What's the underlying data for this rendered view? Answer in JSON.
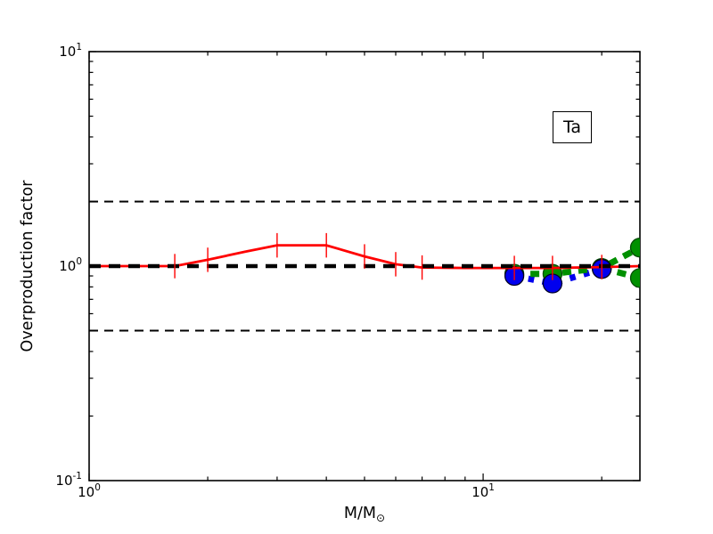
{
  "axes": {
    "ylabel": "Overproduction factor",
    "xlabel": {
      "main": "M/M",
      "sub": "⊙"
    }
  },
  "annotation": {
    "label": "Ta"
  },
  "chart_data": {
    "type": "line",
    "title": "",
    "xlabel": "M/M_sun",
    "ylabel": "Overproduction factor",
    "annotation": "Ta",
    "x_scale": "log",
    "y_scale": "log",
    "xlim": [
      1,
      25
    ],
    "ylim": [
      0.1,
      10
    ],
    "grid": false,
    "x_major_ticks": [
      {
        "value": 1,
        "label": "10^0",
        "exp": "0"
      },
      {
        "value": 10,
        "label": "10^1",
        "exp": "1"
      }
    ],
    "x_minor_ticks": [
      2,
      3,
      4,
      5,
      6,
      7,
      8,
      9,
      20
    ],
    "y_major_ticks": [
      {
        "value": 0.1,
        "label": "10^-1",
        "exp": "-1"
      },
      {
        "value": 1,
        "label": "10^0",
        "exp": "0"
      },
      {
        "value": 10,
        "label": "10^1",
        "exp": "1"
      }
    ],
    "y_minor_ticks": [
      0.2,
      0.3,
      0.4,
      0.5,
      0.6,
      0.7,
      0.8,
      0.9,
      2,
      3,
      4,
      5,
      6,
      7,
      8,
      9
    ],
    "reference_lines": [
      {
        "y": 2.0,
        "color": "#000000",
        "style": "dashed-thin"
      },
      {
        "y": 1.0,
        "color": "#000000",
        "style": "dashed-thick"
      },
      {
        "y": 0.5,
        "color": "#000000",
        "style": "dashed-thin"
      }
    ],
    "series": [
      {
        "name": "red-solid",
        "color": "#ff0000",
        "style": "solid",
        "linewidth": 2.8,
        "marker": "none",
        "points": [
          [
            1,
            1.0
          ],
          [
            1.65,
            1.0
          ],
          [
            2,
            1.07
          ],
          [
            2.5,
            1.17
          ],
          [
            3,
            1.25
          ],
          [
            4,
            1.25
          ],
          [
            5,
            1.11
          ],
          [
            6,
            1.02
          ],
          [
            7,
            0.985
          ],
          [
            9,
            0.98
          ],
          [
            12,
            0.98
          ],
          [
            15,
            0.98
          ],
          [
            20,
            0.99
          ],
          [
            25,
            1.0
          ]
        ],
        "errorbar_x": [
          1.65,
          2,
          3,
          4,
          5,
          6,
          7,
          12,
          15,
          20
        ],
        "errorbar_factor": 1.14
      },
      {
        "name": "blue-dotted",
        "color": "#0000ee",
        "style": "dotted",
        "linewidth": 7,
        "marker": "circle",
        "points": [
          [
            12,
            0.9
          ],
          [
            15,
            0.83
          ],
          [
            20,
            0.97
          ]
        ]
      },
      {
        "name": "green-dashed-upper",
        "color": "#009000",
        "style": "dashed",
        "linewidth": 7,
        "marker": "circle",
        "points": [
          [
            12,
            0.92
          ],
          [
            15,
            0.92
          ],
          [
            20,
            0.98
          ],
          [
            25,
            1.22
          ]
        ]
      },
      {
        "name": "green-dashed-lower",
        "color": "#009000",
        "style": "dashed",
        "linewidth": 7,
        "marker": "circle",
        "points": [
          [
            20,
            0.98
          ],
          [
            25,
            0.88
          ]
        ]
      }
    ]
  }
}
